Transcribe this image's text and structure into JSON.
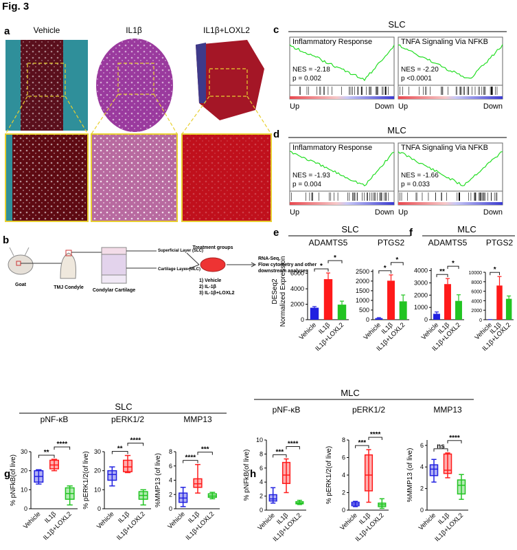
{
  "figure_title": "Fig. 3",
  "panel_a": {
    "label": "a",
    "conditions": [
      "Vehicle",
      "IL1β",
      "IL1β+LOXL2"
    ]
  },
  "panel_b": {
    "label": "b",
    "steps": [
      "Goat",
      "TMJ Condyle",
      "Condylar Cartilage"
    ],
    "layers": [
      "Superficial Layer (SLC)",
      "Cartilage Layer (MLC)"
    ],
    "treatment_title": "Treatment groups",
    "groups": [
      "1) Vehicle",
      "2) IL-1β",
      "3) IL-1β+LOXL2"
    ],
    "analyses": [
      "RNA-Seq,",
      "Flow cytometry and other",
      "downstream analyses"
    ]
  },
  "panel_c": {
    "label": "c",
    "title": "SLC",
    "left": "Up",
    "right": "Down",
    "plots": [
      {
        "title": "Inflammatory Response",
        "nes": "NES = -2.18",
        "p": "p = 0.002"
      },
      {
        "title": "TNFA Signaling Via NFKB",
        "nes": "NES = -2.20",
        "p": "p <0.0001"
      }
    ]
  },
  "panel_d": {
    "label": "d",
    "title": "MLC",
    "left": "Up",
    "right": "Down",
    "plots": [
      {
        "title": "Inflammatory Response",
        "nes": "NES = -1.93",
        "p": "p = 0.004"
      },
      {
        "title": "TNFA Signaling Via NFKB",
        "nes": "NES = -1.66",
        "p": "p = 0.033"
      }
    ]
  },
  "panel_e": {
    "label": "e",
    "title": "SLC",
    "ylabel": [
      "DESeq2",
      "Normalized Expression"
    ]
  },
  "panel_f": {
    "label": "f",
    "title": "MLC"
  },
  "panel_g": {
    "label": "g",
    "title": "SLC"
  },
  "panel_h": {
    "label": "h",
    "title": "MLC"
  },
  "chart_data": [
    {
      "type": "bar",
      "title": "ADAMTS5",
      "categories": [
        "Vehicle",
        "IL1β",
        "IL1β+LOXL2"
      ],
      "colors": [
        "#2020e0",
        "#ff1a1a",
        "#22c422"
      ],
      "values": [
        1550,
        5250,
        1950
      ],
      "errors": [
        150,
        800,
        450
      ],
      "ylim": [
        0,
        6500
      ],
      "yticks": [
        0,
        2000,
        4000,
        6000
      ],
      "significance": [
        "*",
        "*"
      ]
    },
    {
      "type": "bar",
      "title": "PTGS2",
      "categories": [
        "Vehicle",
        "IL1β",
        "IL1β+LOXL2"
      ],
      "colors": [
        "#2020e0",
        "#ff1a1a",
        "#22c422"
      ],
      "values": [
        80,
        2020,
        950
      ],
      "errors": [
        30,
        300,
        330
      ],
      "ylim": [
        0,
        2600
      ],
      "yticks": [
        0,
        500,
        1000,
        1500,
        2000,
        2500
      ],
      "significance": [
        "*",
        "*"
      ]
    },
    {
      "type": "bar",
      "title": "ADAMTS5",
      "categories": [
        "Vehicle",
        "IL1β",
        "IL1β+LOXL2"
      ],
      "colors": [
        "#2020e0",
        "#ff1a1a",
        "#22c422"
      ],
      "values": [
        480,
        2900,
        1530
      ],
      "errors": [
        150,
        450,
        500
      ],
      "ylim": [
        0,
        4200
      ],
      "yticks": [
        0,
        1000,
        2000,
        3000,
        4000
      ],
      "significance": [
        "**",
        "*"
      ]
    },
    {
      "type": "bar",
      "title": "PTGS2",
      "categories": [
        "Vehicle",
        "IL1β",
        "IL1β+LOXL2"
      ],
      "colors": [
        "#2020e0",
        "#ff1a1a",
        "#22c422"
      ],
      "values": [
        20,
        7200,
        4400
      ],
      "errors": [
        10,
        1900,
        600
      ],
      "ylim": [
        0,
        10000
      ],
      "yticks": [
        0,
        2000,
        4000,
        6000,
        8000,
        10000
      ],
      "significance": [
        "*"
      ]
    },
    {
      "type": "box",
      "title": "pNF-κB",
      "ylabel": "% pNFkB(of live)",
      "categories": [
        "Vehicle",
        "IL1β",
        "IL1β+LOXL2"
      ],
      "colors": [
        "#2020e0",
        "#ff1a1a",
        "#22c422"
      ],
      "boxes": [
        {
          "min": 13,
          "q1": 14,
          "median": 17,
          "q3": 20,
          "max": 20.5
        },
        {
          "min": 20,
          "q1": 21,
          "median": 23,
          "q3": 25.5,
          "max": 26
        },
        {
          "min": 2,
          "q1": 5,
          "median": 8,
          "q3": 11,
          "max": 12
        }
      ],
      "ylim": [
        0,
        30
      ],
      "yticks": [
        0,
        10,
        20,
        30
      ],
      "significance": [
        "**",
        "****"
      ]
    },
    {
      "type": "box",
      "title": "pERK1/2",
      "ylabel": "% pERK1/2(of live)",
      "categories": [
        "Vehicle",
        "IL1β",
        "IL1β+LOXL2"
      ],
      "colors": [
        "#2020e0",
        "#ff1a1a",
        "#22c422"
      ],
      "boxes": [
        {
          "min": 12,
          "q1": 15,
          "median": 18,
          "q3": 20,
          "max": 22
        },
        {
          "min": 19,
          "q1": 19.5,
          "median": 22,
          "q3": 25.5,
          "max": 28
        },
        {
          "min": 2,
          "q1": 5,
          "median": 7,
          "q3": 9,
          "max": 10
        }
      ],
      "ylim": [
        0,
        30
      ],
      "yticks": [
        0,
        10,
        20,
        30
      ],
      "significance": [
        "**",
        "****"
      ]
    },
    {
      "type": "box",
      "title": "MMP13",
      "ylabel": "%MMP13 (of live)",
      "categories": [
        "Vehicle",
        "IL1β",
        "IL1β+LOXL2"
      ],
      "colors": [
        "#2020e0",
        "#ff1a1a",
        "#22c422"
      ],
      "boxes": [
        {
          "min": 0.3,
          "q1": 0.9,
          "median": 1.5,
          "q3": 2.2,
          "max": 3
        },
        {
          "min": 2.2,
          "q1": 3,
          "median": 3.5,
          "q3": 4.2,
          "max": 6.2
        },
        {
          "min": 1.4,
          "q1": 1.6,
          "median": 1.8,
          "q3": 2.1,
          "max": 2.3
        }
      ],
      "ylim": [
        0,
        8
      ],
      "yticks": [
        0,
        2,
        4,
        6,
        8
      ],
      "significance": [
        "****",
        "***"
      ]
    },
    {
      "type": "box",
      "title": "pNF-κB",
      "ylabel": "% pNFkB(of live)",
      "categories": [
        "Vehicle",
        "IL1β",
        "IL1β+LOXL2"
      ],
      "colors": [
        "#2020e0",
        "#ff1a1a",
        "#22c422"
      ],
      "boxes": [
        {
          "min": 1,
          "q1": 1.3,
          "median": 1.6,
          "q3": 2.2,
          "max": 3.2
        },
        {
          "min": 2.5,
          "q1": 3.8,
          "median": 5,
          "q3": 6.8,
          "max": 7.3
        },
        {
          "min": 0.8,
          "q1": 0.9,
          "median": 1,
          "q3": 1.2,
          "max": 1.4
        }
      ],
      "ylim": [
        0,
        10
      ],
      "yticks": [
        0,
        2,
        4,
        6,
        8,
        10
      ],
      "significance": [
        "***",
        "****"
      ]
    },
    {
      "type": "box",
      "title": "pERK1/2",
      "ylabel": "% pERK1/2(of live)",
      "categories": [
        "Vehicle",
        "IL1β",
        "IL1β+LOXL2"
      ],
      "colors": [
        "#2020e0",
        "#ff1a1a",
        "#22c422"
      ],
      "boxes": [
        {
          "min": 0.4,
          "q1": 0.5,
          "median": 0.7,
          "q3": 0.9,
          "max": 1
        },
        {
          "min": 0.9,
          "q1": 2.2,
          "median": 4,
          "q3": 6.3,
          "max": 6.9
        },
        {
          "min": 0.2,
          "q1": 0.4,
          "median": 0.6,
          "q3": 0.8,
          "max": 1.3
        }
      ],
      "ylim": [
        0,
        8
      ],
      "yticks": [
        0,
        2,
        4,
        6,
        8
      ],
      "significance": [
        "***",
        "****"
      ]
    },
    {
      "type": "box",
      "title": "MMP13",
      "ylabel": "%MMP13 (of live)",
      "categories": [
        "Vehicle",
        "IL1β",
        "IL1β+LOXL2"
      ],
      "colors": [
        "#2020e0",
        "#ff1a1a",
        "#22c422"
      ],
      "boxes": [
        {
          "min": 2.6,
          "q1": 3.2,
          "median": 3.8,
          "q3": 4.2,
          "max": 4.7
        },
        {
          "min": 3,
          "q1": 3.4,
          "median": 3.7,
          "q3": 5.2,
          "max": 5.3
        },
        {
          "min": 1,
          "q1": 1.5,
          "median": 2.3,
          "q3": 2.8,
          "max": 3.3
        }
      ],
      "ylim": [
        0,
        6.5
      ],
      "yticks": [
        0,
        2,
        4,
        6
      ],
      "significance": [
        "ns",
        "****"
      ]
    }
  ]
}
